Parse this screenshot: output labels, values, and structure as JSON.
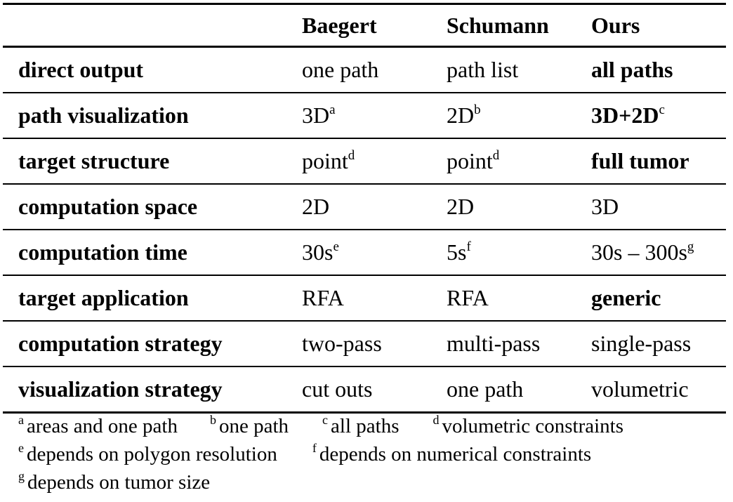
{
  "table": {
    "headers": [
      "",
      "Baegert",
      "Schumann",
      "Ours"
    ],
    "rows": [
      {
        "label": "direct output",
        "cells": [
          {
            "text": "one path",
            "sup": "",
            "bold": false
          },
          {
            "text": "path list",
            "sup": "",
            "bold": false
          },
          {
            "text": "all paths",
            "sup": "",
            "bold": true
          }
        ]
      },
      {
        "label": "path visualization",
        "cells": [
          {
            "text": "3D",
            "sup": "a",
            "bold": false
          },
          {
            "text": "2D",
            "sup": "b",
            "bold": false
          },
          {
            "text": "3D+2D",
            "sup": "c",
            "bold": true
          }
        ]
      },
      {
        "label": "target structure",
        "cells": [
          {
            "text": "point",
            "sup": "d",
            "bold": false
          },
          {
            "text": "point",
            "sup": "d",
            "bold": false
          },
          {
            "text": "full tumor",
            "sup": "",
            "bold": true
          }
        ]
      },
      {
        "label": "computation space",
        "cells": [
          {
            "text": "2D",
            "sup": "",
            "bold": false
          },
          {
            "text": "2D",
            "sup": "",
            "bold": false
          },
          {
            "text": "3D",
            "sup": "",
            "bold": false
          }
        ]
      },
      {
        "label": "computation time",
        "cells": [
          {
            "text": "30s",
            "sup": "e",
            "bold": false
          },
          {
            "text": "5s",
            "sup": "f",
            "bold": false
          },
          {
            "text": "30s – 300s",
            "sup": "g",
            "bold": false
          }
        ]
      },
      {
        "label": "target application",
        "cells": [
          {
            "text": "RFA",
            "sup": "",
            "bold": false
          },
          {
            "text": "RFA",
            "sup": "",
            "bold": false
          },
          {
            "text": "generic",
            "sup": "",
            "bold": true
          }
        ]
      },
      {
        "label": "computation strategy",
        "cells": [
          {
            "text": "two-pass",
            "sup": "",
            "bold": false
          },
          {
            "text": "multi-pass",
            "sup": "",
            "bold": false
          },
          {
            "text": "single-pass",
            "sup": "",
            "bold": false
          }
        ]
      },
      {
        "label": "visualization strategy",
        "cells": [
          {
            "text": "cut outs",
            "sup": "",
            "bold": false
          },
          {
            "text": "one path",
            "sup": "",
            "bold": false
          },
          {
            "text": "volumetric",
            "sup": "",
            "bold": false
          }
        ]
      }
    ]
  },
  "footnotes": [
    [
      {
        "mark": "a",
        "text": "areas and one path"
      },
      {
        "mark": "b",
        "text": "one path"
      },
      {
        "mark": "c",
        "text": "all paths"
      },
      {
        "mark": "d",
        "text": "volumetric constraints"
      }
    ],
    [
      {
        "mark": "e",
        "text": "depends on polygon resolution"
      },
      {
        "mark": "f",
        "text": "depends on numerical constraints"
      }
    ],
    [
      {
        "mark": "g",
        "text": "depends on tumor size"
      }
    ]
  ]
}
